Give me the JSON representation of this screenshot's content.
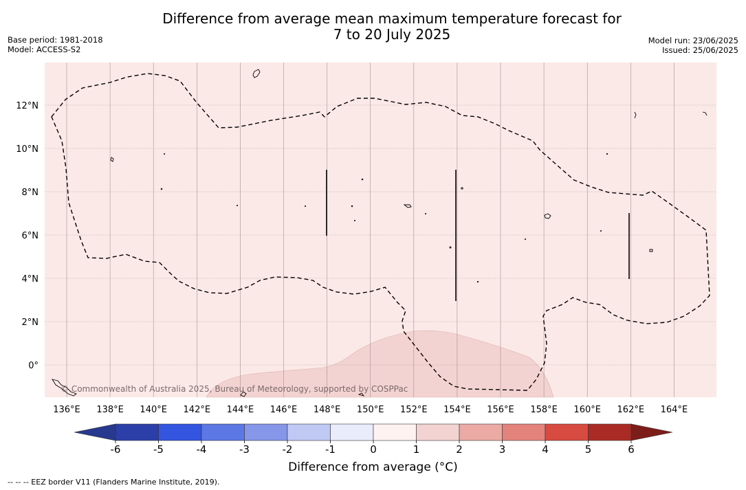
{
  "title_line1": "Difference from average mean maximum temperature forecast for",
  "title_line2": "7 to 20 July 2025",
  "meta_left": {
    "base_period": "Base period: 1981-2018",
    "model": "Model: ACCESS-S2"
  },
  "meta_right": {
    "model_run": "Model run: 23/06/2025",
    "issued": "Issued: 25/06/2025"
  },
  "map": {
    "background_color": "#fbe9e7",
    "warm_patch_color": "#f3d3d1",
    "longitude_labels": [
      "136°E",
      "138°E",
      "140°E",
      "142°E",
      "144°E",
      "146°E",
      "148°E",
      "150°E",
      "152°E",
      "154°E",
      "156°E",
      "158°E",
      "160°E",
      "162°E",
      "164°E"
    ],
    "latitude_labels": [
      "12°N",
      "10°N",
      "8°N",
      "6°N",
      "4°N",
      "2°N",
      "0°"
    ],
    "copyright": "© Commonwealth of Australia 2025, Bureau of Meteorology, supported by COSPPac"
  },
  "colorbar": {
    "label": "Difference from average (°C)",
    "ticks": [
      "-6",
      "-5",
      "-4",
      "-3",
      "-2",
      "-1",
      "0",
      "1",
      "2",
      "3",
      "4",
      "5",
      "6"
    ],
    "colors": [
      "#27398f",
      "#2c3fa8",
      "#3355e0",
      "#5c78e4",
      "#8696e8",
      "#c0c9f3",
      "#e9ecfb",
      "#fdf2f0",
      "#f3d3d1",
      "#ebaaa4",
      "#e3837b",
      "#d84b40",
      "#aa2b25",
      "#7d1d1a"
    ]
  },
  "footnote": "--  --  -- EEZ border V11 (Flanders Marine Institute, 2019)."
}
